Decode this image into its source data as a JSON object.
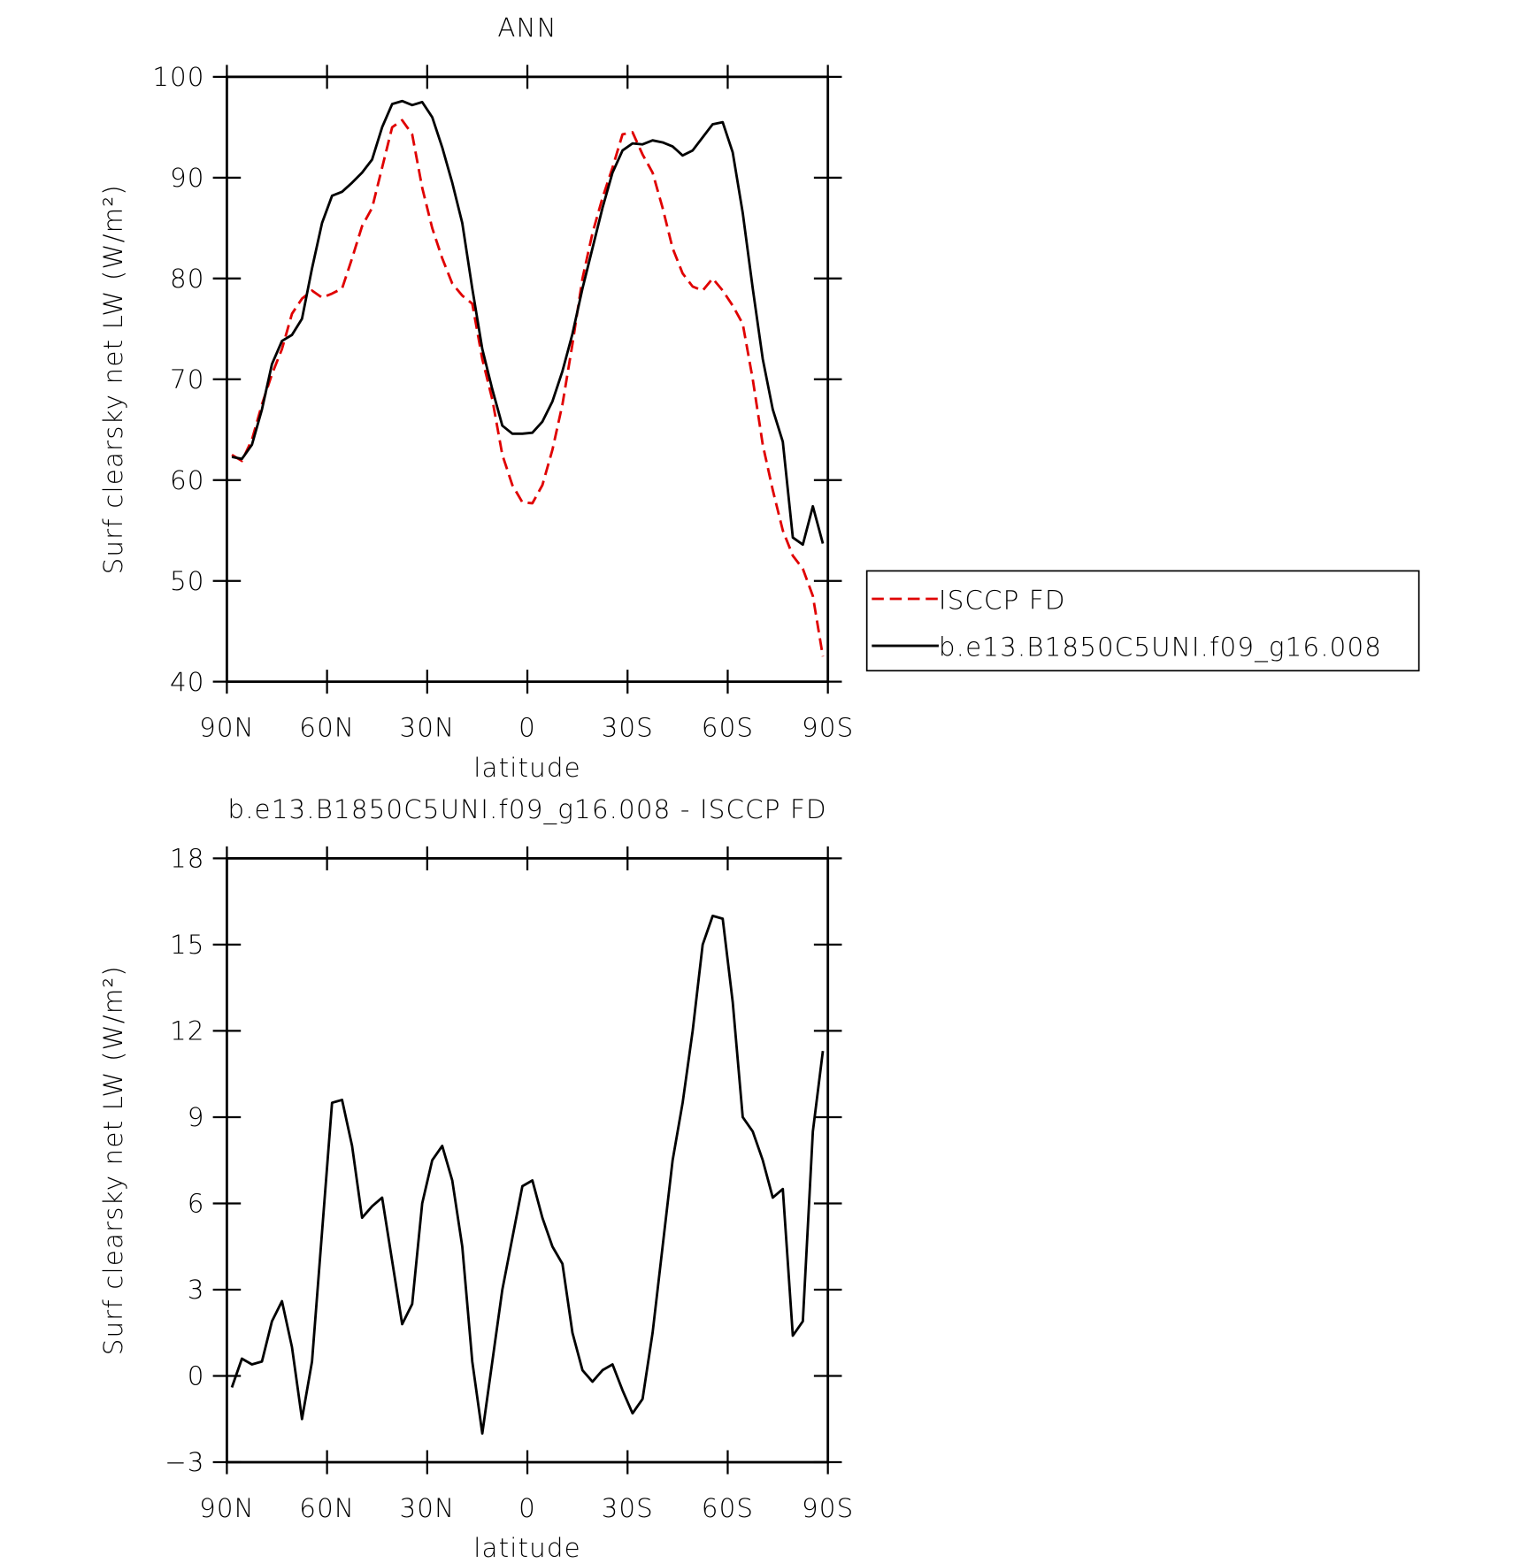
{
  "chart_data": [
    {
      "type": "line",
      "title": "ANN",
      "xlabel": "latitude",
      "ylabel": "Surf clearsky net LW (W/m²)",
      "xlim": [
        90,
        -90
      ],
      "xticks": [
        {
          "value": 90,
          "label": "90N"
        },
        {
          "value": 60,
          "label": "60N"
        },
        {
          "value": 30,
          "label": "30N"
        },
        0,
        {
          "value": -30,
          "label": "30S"
        },
        {
          "value": -60,
          "label": "60S"
        },
        {
          "value": -90,
          "label": "90S"
        }
      ],
      "ylim": [
        40,
        100
      ],
      "yticks": [
        40,
        50,
        60,
        70,
        80,
        90,
        100
      ],
      "legend": true,
      "legend_position": "right",
      "x": [
        88.5,
        85.5,
        82.5,
        79.5,
        76.5,
        73.5,
        70.5,
        67.5,
        64.5,
        61.5,
        58.5,
        55.5,
        52.5,
        49.5,
        46.5,
        43.5,
        40.5,
        37.5,
        34.5,
        31.5,
        28.5,
        25.5,
        22.5,
        19.5,
        16.5,
        13.5,
        10.5,
        7.5,
        4.5,
        1.5,
        -1.5,
        -4.5,
        -7.5,
        -10.5,
        -13.5,
        -16.5,
        -19.5,
        -22.5,
        -25.5,
        -28.5,
        -31.5,
        -34.5,
        -37.5,
        -40.5,
        -43.5,
        -46.5,
        -49.5,
        -52.5,
        -55.5,
        -58.5,
        -61.5,
        -64.5,
        -67.5,
        -70.5,
        -73.5,
        -76.5,
        -79.5,
        -82.5,
        -85.5,
        -88.5
      ],
      "series": [
        {
          "name": "ISCCP FD",
          "color": "#e00000",
          "line_style": "dashed",
          "values": [
            62.5,
            61.9,
            64,
            67.5,
            70.5,
            73,
            76.5,
            78,
            78.8,
            78.1,
            78.5,
            79,
            82,
            85.2,
            87,
            91,
            95,
            95.7,
            94.3,
            89,
            85,
            82,
            79.5,
            78.3,
            77.5,
            72,
            68,
            62.5,
            59.5,
            57.8,
            57.7,
            59.5,
            63,
            67.5,
            73.5,
            80,
            84.5,
            88,
            91,
            94.3,
            94.5,
            92.3,
            90.5,
            87,
            83,
            80.5,
            79.2,
            78.8,
            80,
            78.8,
            77.3,
            75.5,
            70,
            63.5,
            59,
            55,
            52.5,
            51.2,
            48.5,
            42.5
          ]
        },
        {
          "name": "b.e13.B1850C5UNI.f09_g16.008",
          "color": "#000000",
          "line_style": "solid",
          "values": [
            62.3,
            62.1,
            63.5,
            67,
            71.5,
            73.8,
            74.4,
            76,
            81,
            85.5,
            88.2,
            88.6,
            89.5,
            90.5,
            91.8,
            95,
            97.3,
            97.6,
            97.2,
            97.5,
            96,
            93,
            89.5,
            85.5,
            79,
            73,
            69,
            65.4,
            64.6,
            64.6,
            64.7,
            65.8,
            67.8,
            70.8,
            74.5,
            79,
            83,
            87,
            90.5,
            92.7,
            93.4,
            93.3,
            93.7,
            93.5,
            93.1,
            92.2,
            92.7,
            94,
            95.3,
            95.5,
            92.5,
            86.5,
            79,
            72,
            67,
            63.8,
            54.3,
            53.6,
            57.4,
            53.7
          ]
        }
      ]
    },
    {
      "type": "line",
      "title": "b.e13.B1850C5UNI.f09_g16.008 - ISCCP FD",
      "xlabel": "latitude",
      "ylabel": "Surf clearsky net LW (W/m²)",
      "xlim": [
        90,
        -90
      ],
      "xticks": [
        {
          "value": 90,
          "label": "90N"
        },
        {
          "value": 60,
          "label": "60N"
        },
        {
          "value": 30,
          "label": "30N"
        },
        0,
        {
          "value": -30,
          "label": "30S"
        },
        {
          "value": -60,
          "label": "60S"
        },
        {
          "value": -90,
          "label": "90S"
        }
      ],
      "ylim": [
        -3,
        18
      ],
      "yticks": [
        {
          "value": -3,
          "label": "−3"
        },
        0,
        3,
        6,
        9,
        12,
        15,
        18
      ],
      "legend": false,
      "x": [
        88.5,
        85.5,
        82.5,
        79.5,
        76.5,
        73.5,
        70.5,
        67.5,
        64.5,
        61.5,
        58.5,
        55.5,
        52.5,
        49.5,
        46.5,
        43.5,
        40.5,
        37.5,
        34.5,
        31.5,
        28.5,
        25.5,
        22.5,
        19.5,
        16.5,
        13.5,
        10.5,
        7.5,
        4.5,
        1.5,
        -1.5,
        -4.5,
        -7.5,
        -10.5,
        -13.5,
        -16.5,
        -19.5,
        -22.5,
        -25.5,
        -28.5,
        -31.5,
        -34.5,
        -37.5,
        -40.5,
        -43.5,
        -46.5,
        -49.5,
        -52.5,
        -55.5,
        -58.5,
        -61.5,
        -64.5,
        -67.5,
        -70.5,
        -73.5,
        -76.5,
        -79.5,
        -82.5,
        -85.5,
        -88.5
      ],
      "series": [
        {
          "color": "#000000",
          "line_style": "solid",
          "values": [
            -0.4,
            0.6,
            0.4,
            0.5,
            1.9,
            2.6,
            1.0,
            -1.5,
            0.5,
            5,
            9.5,
            9.6,
            8,
            5.5,
            5.9,
            6.2,
            4,
            1.8,
            2.5,
            6,
            7.5,
            8,
            6.8,
            4.5,
            0.5,
            -2,
            0.5,
            3,
            4.8,
            6.6,
            6.8,
            5.5,
            4.5,
            3.9,
            1.5,
            0.2,
            -0.2,
            0.2,
            0.4,
            -0.5,
            -1.3,
            -0.8,
            1.5,
            4.5,
            7.5,
            9.5,
            12,
            15,
            16,
            15.9,
            13,
            9,
            8.5,
            7.5,
            6.2,
            6.5,
            1.4,
            1.9,
            8.5,
            11.3
          ]
        }
      ]
    }
  ]
}
